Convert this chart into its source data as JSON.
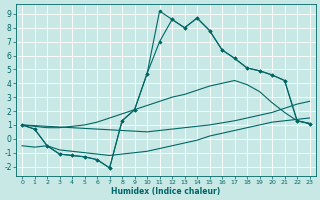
{
  "xlabel": "Humidex (Indice chaleur)",
  "background_color": "#c8e8e5",
  "grid_color": "#ffffff",
  "line_color": "#006666",
  "xlim": [
    -0.5,
    23.5
  ],
  "ylim": [
    -2.7,
    9.7
  ],
  "xticks": [
    0,
    1,
    2,
    3,
    4,
    5,
    6,
    7,
    8,
    9,
    10,
    11,
    12,
    13,
    14,
    15,
    16,
    17,
    18,
    19,
    20,
    21,
    22,
    23
  ],
  "yticks": [
    -2,
    -1,
    0,
    1,
    2,
    3,
    4,
    5,
    6,
    7,
    8,
    9
  ],
  "series1_x": [
    0,
    1,
    2,
    3,
    4,
    5,
    6,
    7,
    8,
    9,
    10,
    11,
    12,
    13,
    14,
    15,
    16,
    17,
    18,
    19,
    20,
    21,
    22,
    23
  ],
  "series1_y": [
    1.0,
    0.7,
    -0.5,
    -1.1,
    -1.2,
    -1.3,
    -1.5,
    -2.1,
    1.3,
    2.1,
    4.7,
    9.2,
    8.6,
    8.0,
    8.7,
    7.8,
    6.4,
    5.8,
    5.1,
    4.9,
    4.6,
    4.2,
    1.3,
    1.1
  ],
  "series2_x": [
    0,
    1,
    2,
    3,
    4,
    5,
    6,
    7,
    8,
    9,
    10,
    11,
    12,
    13,
    14,
    15,
    16,
    17,
    18,
    19,
    20,
    21,
    22,
    23
  ],
  "series2_y": [
    1.0,
    0.7,
    -0.5,
    -1.1,
    -1.2,
    -1.3,
    -1.5,
    -2.1,
    1.3,
    2.1,
    4.7,
    7.0,
    8.6,
    8.0,
    8.7,
    7.8,
    6.4,
    5.8,
    5.1,
    4.9,
    4.6,
    4.2,
    1.3,
    1.1
  ],
  "series3_x": [
    0,
    1,
    2,
    3,
    4,
    5,
    6,
    7,
    8,
    9,
    10,
    11,
    12,
    13,
    14,
    15,
    16,
    17,
    18,
    19,
    20,
    21,
    22,
    23
  ],
  "series3_y": [
    1.0,
    0.9,
    0.8,
    0.8,
    0.9,
    1.0,
    1.2,
    1.5,
    1.8,
    2.1,
    2.4,
    2.7,
    3.0,
    3.2,
    3.5,
    3.8,
    4.0,
    4.2,
    3.9,
    3.4,
    2.6,
    1.9,
    1.3,
    1.1
  ],
  "series4_x": [
    0,
    1,
    2,
    3,
    4,
    5,
    6,
    7,
    8,
    9,
    10,
    11,
    12,
    13,
    14,
    15,
    16,
    17,
    18,
    19,
    20,
    21,
    22,
    23
  ],
  "series4_y": [
    -0.5,
    -0.6,
    -0.5,
    -0.8,
    -0.9,
    -1.0,
    -1.1,
    -1.2,
    -1.1,
    -1.0,
    -0.9,
    -0.7,
    -0.5,
    -0.3,
    -0.1,
    0.2,
    0.4,
    0.6,
    0.8,
    1.0,
    1.2,
    1.3,
    1.4,
    1.5
  ],
  "series5_x": [
    0,
    1,
    2,
    3,
    4,
    5,
    6,
    7,
    8,
    9,
    10,
    11,
    12,
    13,
    14,
    15,
    16,
    17,
    18,
    19,
    20,
    21,
    22,
    23
  ],
  "series5_y": [
    1.0,
    0.95,
    0.9,
    0.85,
    0.8,
    0.75,
    0.7,
    0.65,
    0.6,
    0.55,
    0.5,
    0.6,
    0.7,
    0.8,
    0.9,
    1.0,
    1.15,
    1.3,
    1.5,
    1.7,
    1.9,
    2.2,
    2.5,
    2.7
  ]
}
